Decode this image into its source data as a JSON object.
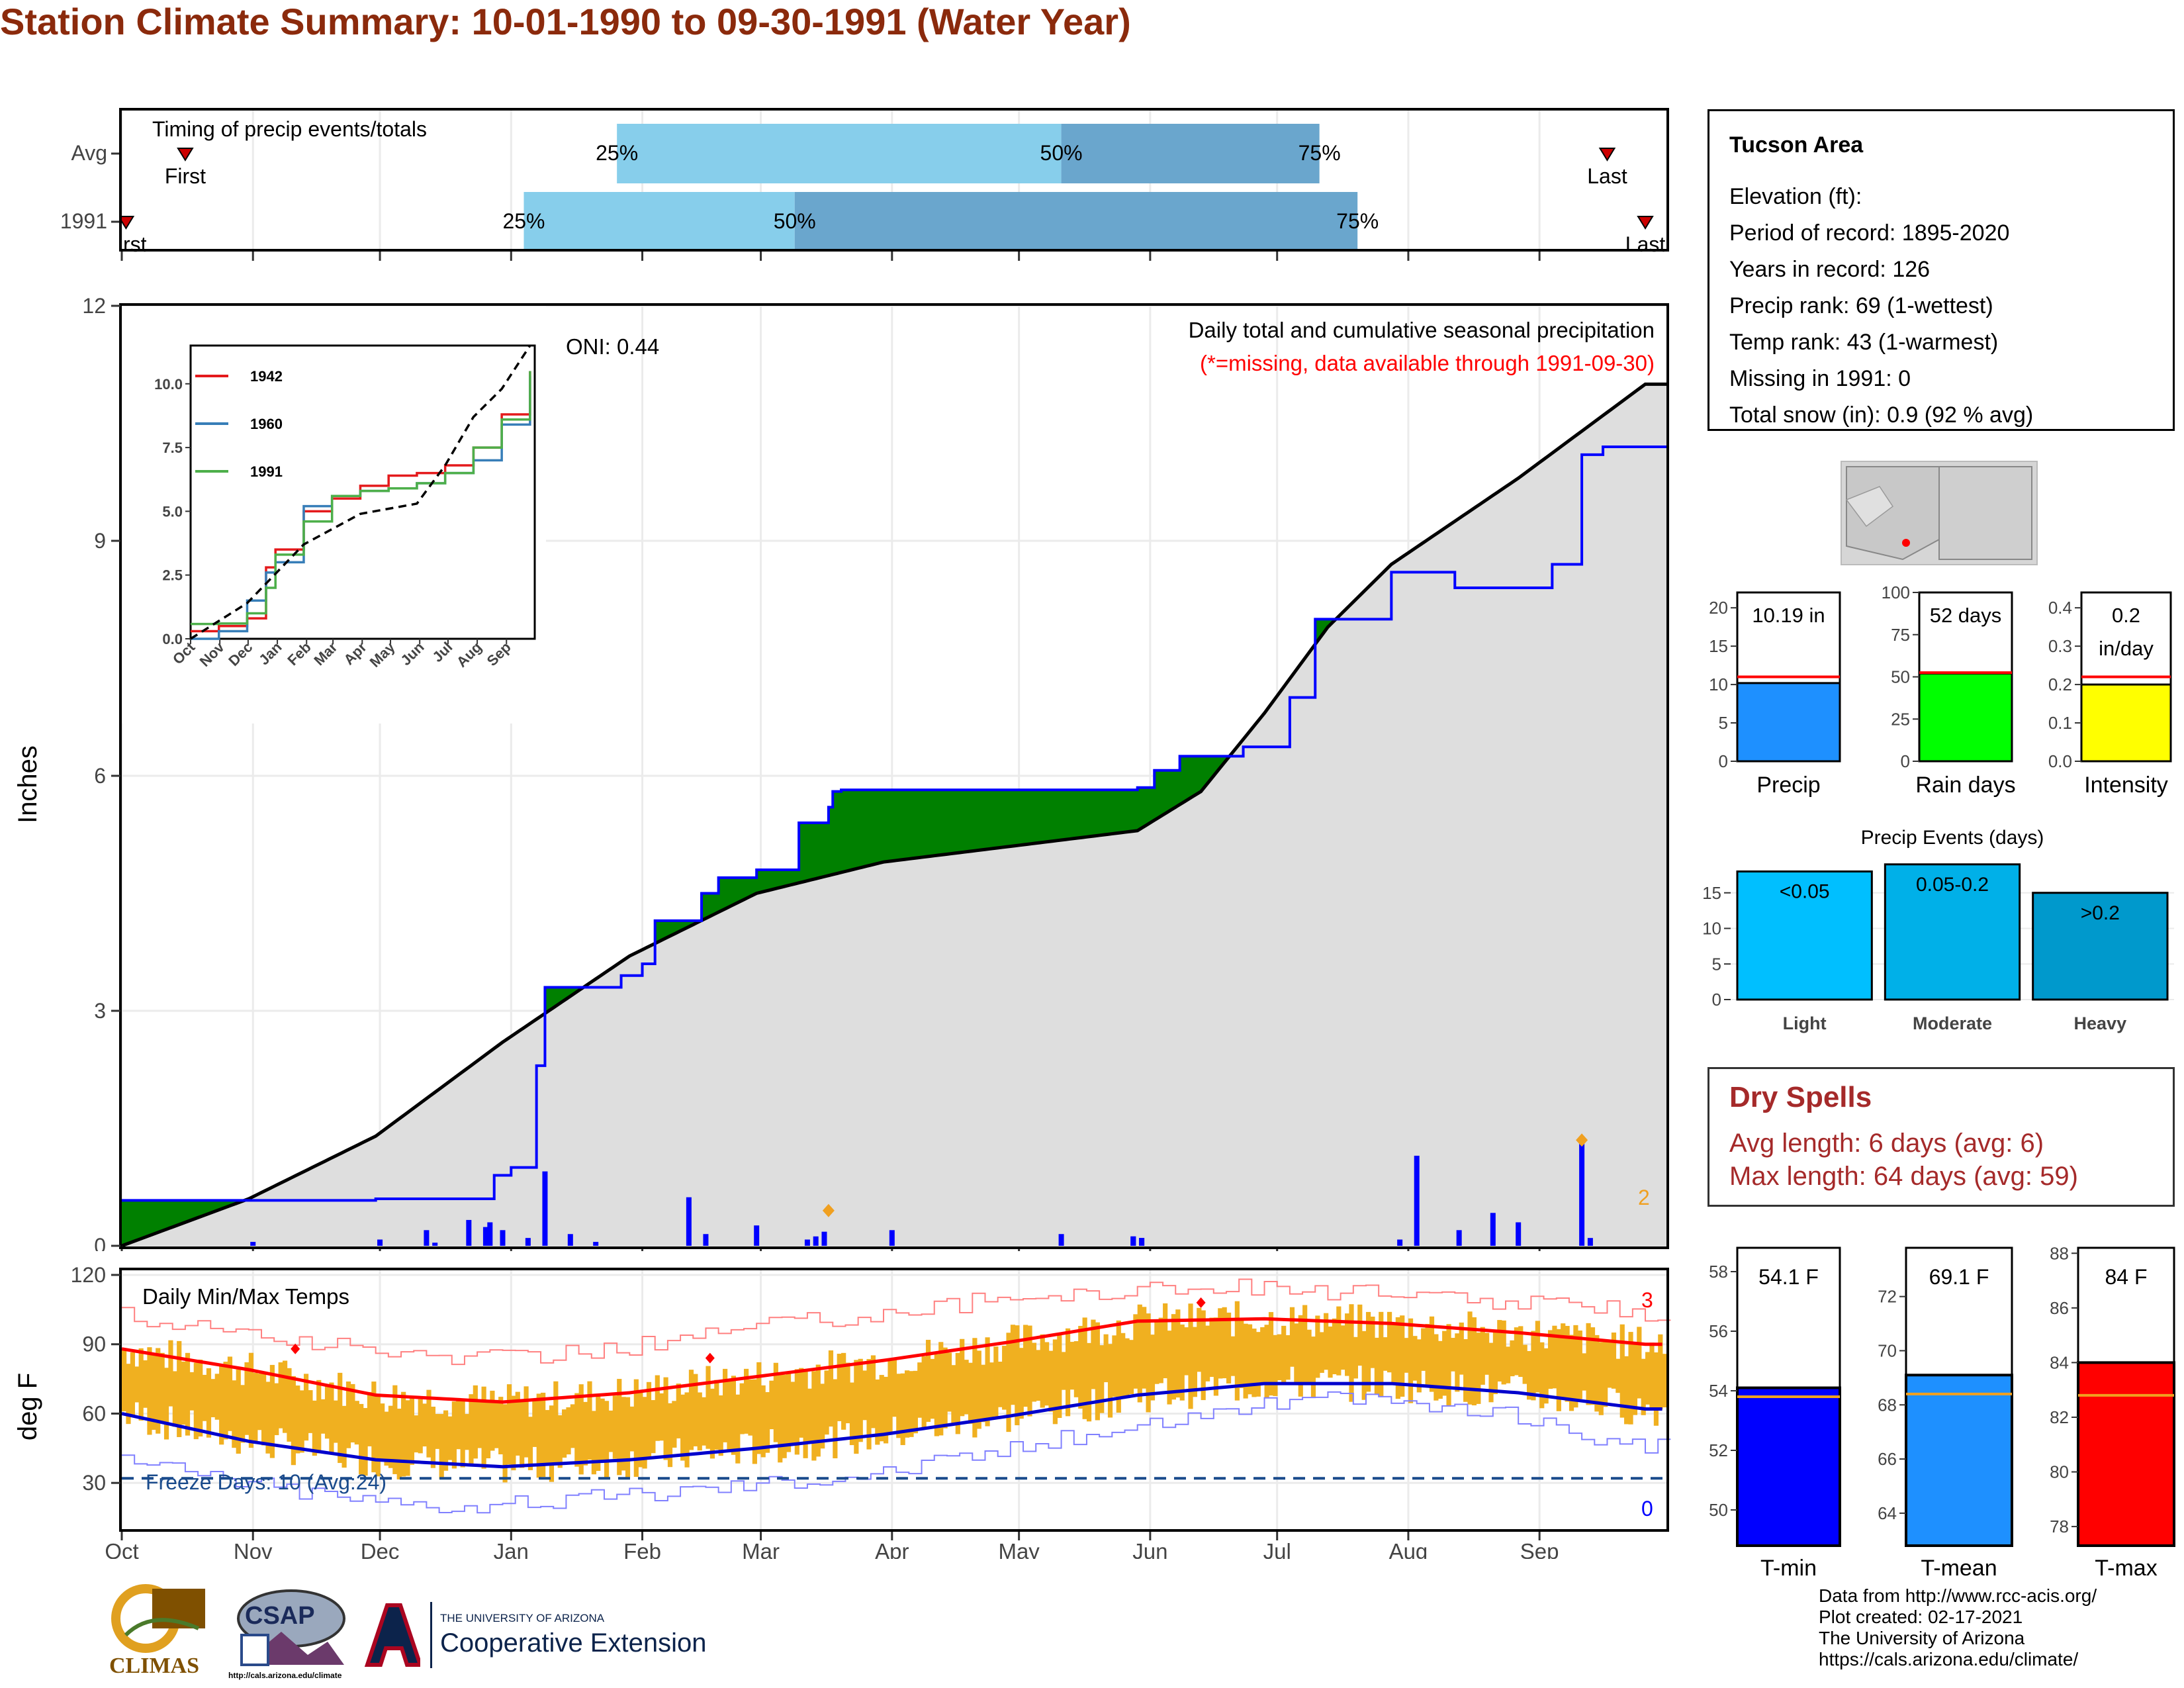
{
  "title": "Station Climate Summary: 10-01-1990 to 09-30-1991 (Water Year)",
  "colors": {
    "title": "#8b2a0c",
    "green": "#008000",
    "brown": "#7f5000",
    "gray": "#dedede",
    "blue": "#0000ff",
    "orange": "#f0b020",
    "red": "#ff0000",
    "lightblue": "#87ceeb",
    "midblue": "#6aa6cd"
  },
  "timing": {
    "title": "Timing of precip events/totals",
    "rows": [
      {
        "label": "Avg",
        "first_label": "First",
        "last_label": "Last",
        "p25_label": "25%",
        "p50_label": "50%",
        "p75_label": "75%",
        "first_day": 15,
        "p25_day": 117,
        "p50_day": 222,
        "p75_day": 283,
        "last_day": 351
      },
      {
        "label": "1991",
        "first_label": "First",
        "last_label": "Last",
        "p25_label": "25%",
        "p50_label": "50%",
        "p75_label": "75%",
        "first_day": 1,
        "p25_day": 95,
        "p50_day": 159,
        "p75_day": 292,
        "last_day": 360
      }
    ]
  },
  "months": [
    "Oct",
    "Nov",
    "Dec",
    "Jan",
    "Feb",
    "Mar",
    "Apr",
    "May",
    "Jun",
    "Jul",
    "Aug",
    "Sep"
  ],
  "chart_data": [
    {
      "type": "area",
      "title": "Daily total and cumulative seasonal precipitation",
      "subtitle": "(*=missing, data available through 1991-09-30)",
      "ylabel": "Inches",
      "ylim": [
        0,
        12
      ],
      "yticks": [
        0,
        3,
        6,
        9,
        12
      ],
      "oni_label": "ONI: 0.44",
      "count_label": "2",
      "series": [
        {
          "name": "observed cumulative",
          "x": [
            0,
            30,
            60,
            75,
            88,
            92,
            98,
            100,
            118,
            123,
            126,
            137,
            141,
            150,
            160,
            167,
            168,
            170,
            176,
            180,
            240,
            244,
            250,
            260,
            265,
            276,
            282,
            300,
            315,
            338,
            345,
            350,
            360
          ],
          "values": [
            0.58,
            0.58,
            0.6,
            0.6,
            0.9,
            1.0,
            2.3,
            3.3,
            3.45,
            3.6,
            4.15,
            4.5,
            4.7,
            4.8,
            5.4,
            5.6,
            5.8,
            5.82,
            5.82,
            5.82,
            5.85,
            6.07,
            6.25,
            6.25,
            6.37,
            7.0,
            8.0,
            8.6,
            8.4,
            8.7,
            10.1,
            10.2,
            10.2
          ]
        },
        {
          "name": "average cumulative",
          "x": [
            0,
            30,
            60,
            90,
            120,
            150,
            180,
            210,
            240,
            255,
            270,
            285,
            300,
            330,
            360
          ],
          "values": [
            0.0,
            0.6,
            1.4,
            2.6,
            3.7,
            4.5,
            4.9,
            5.1,
            5.3,
            5.8,
            6.8,
            7.9,
            8.7,
            9.8,
            11.0
          ]
        }
      ],
      "daily_x": [
        31,
        61,
        72,
        74,
        82,
        86,
        87,
        90,
        96,
        100,
        106,
        112,
        134,
        138,
        150,
        162,
        164,
        166,
        182,
        222,
        239,
        241,
        239,
        241,
        302,
        306,
        316,
        324,
        330,
        345,
        347
      ],
      "daily_values": [
        0.05,
        0.08,
        0.2,
        0.04,
        0.33,
        0.24,
        0.3,
        0.2,
        0.1,
        0.95,
        0.15,
        0.05,
        0.62,
        0.15,
        0.26,
        0.08,
        0.12,
        0.18,
        0.2,
        0.15,
        0.12,
        0.1,
        0.12,
        0.1,
        0.08,
        1.15,
        0.2,
        0.42,
        0.3,
        1.3,
        0.1
      ]
    },
    {
      "type": "line",
      "title": "",
      "legend": [
        "1942",
        "1960",
        "1991"
      ],
      "xlabels": [
        "Oct",
        "Nov",
        "Dec",
        "Jan",
        "Feb",
        "Mar",
        "Apr",
        "May",
        "Jun",
        "Jul",
        "Aug",
        "Sep"
      ],
      "yticks": [
        0.0,
        2.5,
        5.0,
        7.5,
        10.0
      ],
      "ylim": [
        0,
        11.5
      ],
      "series": [
        {
          "name": "1942",
          "color": "#e41a1c",
          "x": [
            0,
            30,
            60,
            80,
            90,
            120,
            150,
            180,
            210,
            240,
            270,
            300,
            330,
            360
          ],
          "values": [
            0.3,
            0.5,
            0.8,
            2.8,
            3.5,
            5.0,
            5.5,
            6.0,
            6.4,
            6.5,
            6.8,
            7.5,
            8.8,
            10.5
          ]
        },
        {
          "name": "1960",
          "color": "#377eb8",
          "x": [
            0,
            30,
            60,
            80,
            90,
            120,
            150,
            180,
            210,
            240,
            270,
            300,
            330,
            360
          ],
          "values": [
            0.0,
            0.3,
            1.5,
            2.6,
            3.0,
            5.2,
            5.6,
            5.8,
            5.9,
            6.1,
            6.5,
            7.0,
            8.4,
            10.3
          ]
        },
        {
          "name": "1991",
          "color": "#4daf4a",
          "x": [
            0,
            30,
            60,
            80,
            90,
            120,
            150,
            180,
            210,
            240,
            270,
            300,
            330,
            360
          ],
          "values": [
            0.58,
            0.6,
            1.0,
            2.0,
            3.3,
            4.6,
            5.6,
            5.8,
            5.9,
            6.1,
            6.5,
            7.5,
            8.6,
            10.5
          ]
        },
        {
          "name": "average",
          "color": "#000000",
          "x": [
            0,
            60,
            120,
            180,
            240,
            270,
            300,
            330,
            360
          ],
          "values": [
            0.0,
            1.4,
            3.7,
            4.9,
            5.3,
            6.8,
            8.7,
            9.8,
            11.5
          ]
        }
      ]
    },
    {
      "type": "bar",
      "title": "Daily Min/Max Temps",
      "ylabel": "deg F",
      "ylim": [
        10,
        122
      ],
      "yticks": [
        30,
        60,
        90,
        120
      ],
      "freeze_label": "Freeze Days: 10 (Avg:24)",
      "freeze_line": 32,
      "max_count_label": "3",
      "min_count_label": "0",
      "series": [
        {
          "name": "avg high",
          "x": [
            0,
            30,
            60,
            90,
            120,
            150,
            180,
            210,
            240,
            270,
            300,
            330,
            360
          ],
          "values": [
            88,
            79,
            68,
            65,
            69,
            76,
            83,
            91,
            100,
            101,
            99,
            95,
            90
          ]
        },
        {
          "name": "avg low",
          "x": [
            0,
            30,
            60,
            90,
            120,
            150,
            180,
            210,
            240,
            270,
            300,
            330,
            360
          ],
          "values": [
            60,
            48,
            40,
            37,
            40,
            45,
            51,
            59,
            68,
            73,
            73,
            69,
            62
          ]
        },
        {
          "name": "record high",
          "x": [
            0,
            30,
            60,
            90,
            120,
            150,
            180,
            210,
            240,
            270,
            300,
            330,
            360
          ],
          "values": [
            102,
            95,
            86,
            84,
            89,
            98,
            104,
            110,
            114,
            115,
            111,
            108,
            104
          ]
        },
        {
          "name": "record low",
          "x": [
            0,
            30,
            60,
            90,
            120,
            150,
            180,
            210,
            240,
            270,
            300,
            330,
            360
          ],
          "values": [
            40,
            30,
            22,
            20,
            25,
            30,
            35,
            45,
            55,
            65,
            66,
            58,
            45
          ]
        }
      ]
    },
    {
      "type": "bar",
      "categories": [
        "Precip",
        "Rain days",
        "Intensity"
      ],
      "values": [
        10.19,
        52,
        0.2
      ],
      "labels": [
        "10.19 in",
        "52 days",
        "0.2 in/day"
      ],
      "averages": [
        11.0,
        52.5,
        0.22
      ],
      "ylims": [
        [
          0,
          22
        ],
        [
          0,
          100
        ],
        [
          0,
          0.44
        ]
      ]
    },
    {
      "type": "bar",
      "title": "Precip Events (days)",
      "categories": [
        "Light",
        "Moderate",
        "Heavy"
      ],
      "values": [
        18,
        19,
        15
      ],
      "labels": [
        "<0.05",
        "0.05-0.2",
        ">0.2"
      ],
      "ylim": [
        0,
        20
      ],
      "yticks": [
        0,
        5,
        10,
        15
      ]
    },
    {
      "type": "bar",
      "categories": [
        "T-min",
        "T-mean",
        "T-max"
      ],
      "values": [
        54.1,
        69.1,
        84
      ],
      "labels": [
        "54.1 F",
        "69.1 F",
        "84 F"
      ],
      "averages": [
        53.8,
        68.4,
        82.8
      ],
      "ylims": [
        [
          48.8,
          58.8
        ],
        [
          62.8,
          73.8
        ],
        [
          77.3,
          88.2
        ]
      ]
    }
  ],
  "station": {
    "name": "Tucson Area",
    "lines": [
      "Elevation (ft):",
      "Period of record: 1895-2020",
      "Years in record: 126",
      "Precip rank: 69 (1-wettest)",
      "Temp rank: 43 (1-warmest)",
      "Missing in 1991: 0",
      "Total snow (in): 0.9 (92 % avg)"
    ]
  },
  "dry_spells": {
    "title": "Dry Spells",
    "avg": "Avg length: 6 days (avg: 6)",
    "max": "Max length: 64 days (avg: 59)"
  },
  "footer": {
    "lines": [
      "Data from http://www.rcc-acis.org/",
      "Plot created: 02-17-2021",
      "The University of Arizona",
      "https://cals.arizona.edu/climate/"
    ],
    "climas": "CLIMAS",
    "csap": "CSAP",
    "csap_url": "http://cals.arizona.edu/climate",
    "ua_small": "THE UNIVERSITY OF ARIZONA",
    "ua_big": "Cooperative Extension"
  }
}
